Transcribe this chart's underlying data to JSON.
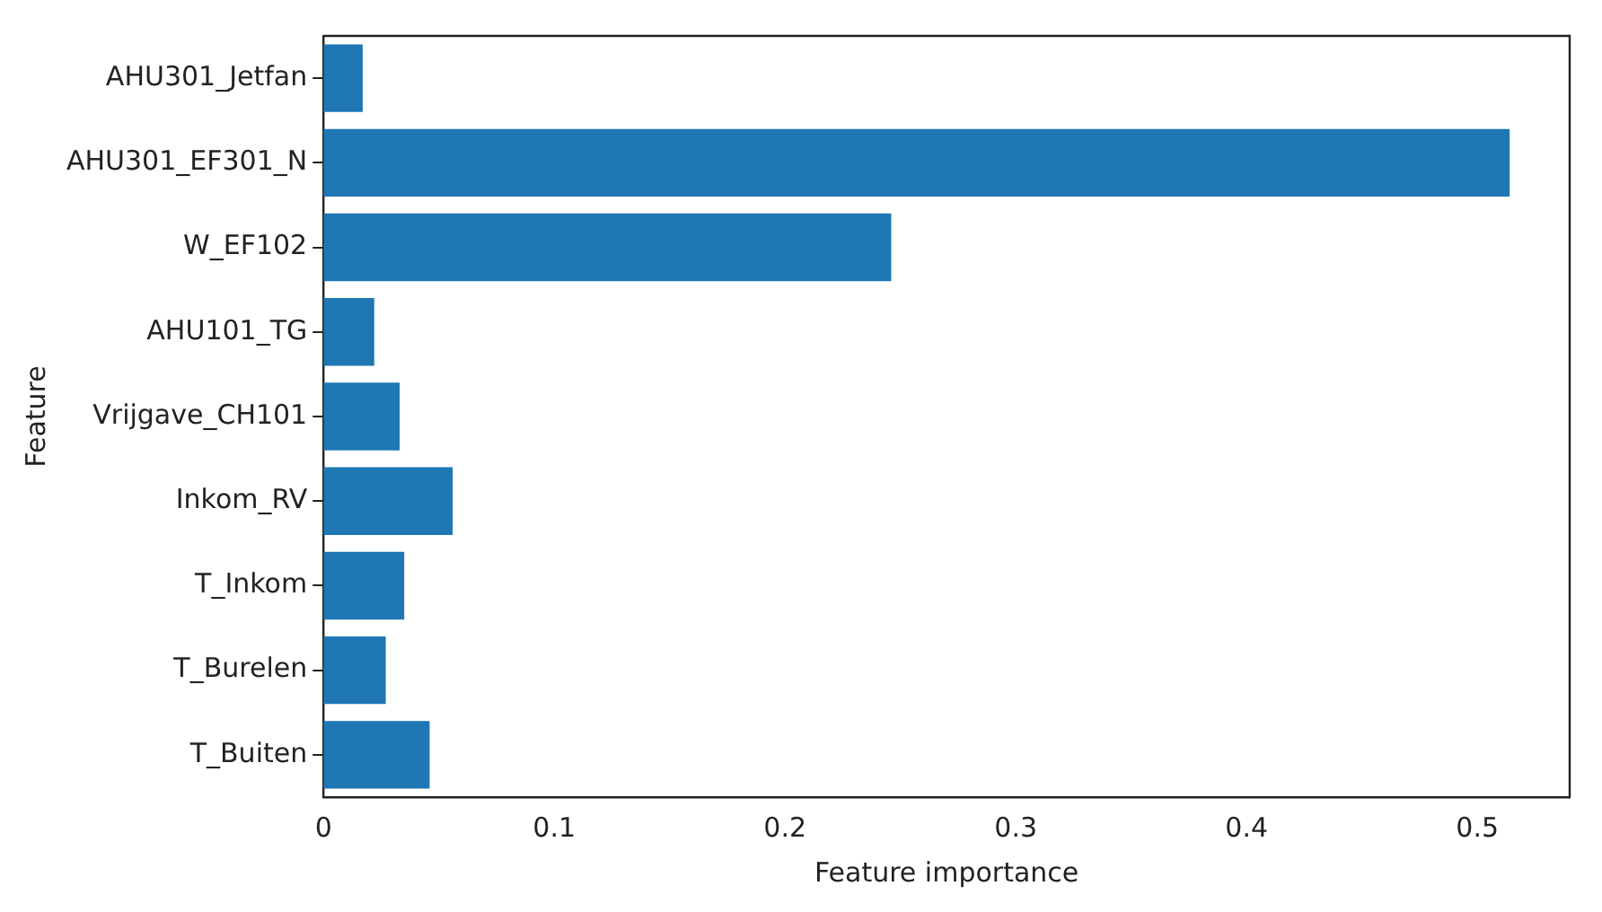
{
  "chart_data": {
    "type": "bar",
    "orientation": "horizontal",
    "xlabel": "Feature importance",
    "ylabel": "Feature",
    "categories": [
      "AHU301_Jetfan",
      "AHU301_EF301_N",
      "W_EF102",
      "AHU101_TG",
      "Vrijgave_CH101",
      "Inkom_RV",
      "T_Inkom",
      "T_Burelen",
      "T_Buiten"
    ],
    "values": [
      0.017,
      0.514,
      0.246,
      0.022,
      0.033,
      0.056,
      0.035,
      0.027,
      0.046
    ],
    "color": "#1f77b4",
    "xlim": [
      0,
      0.54
    ],
    "xticks": [
      0,
      0.1,
      0.2,
      0.3,
      0.4,
      0.5
    ],
    "grid": false,
    "legend": false
  }
}
